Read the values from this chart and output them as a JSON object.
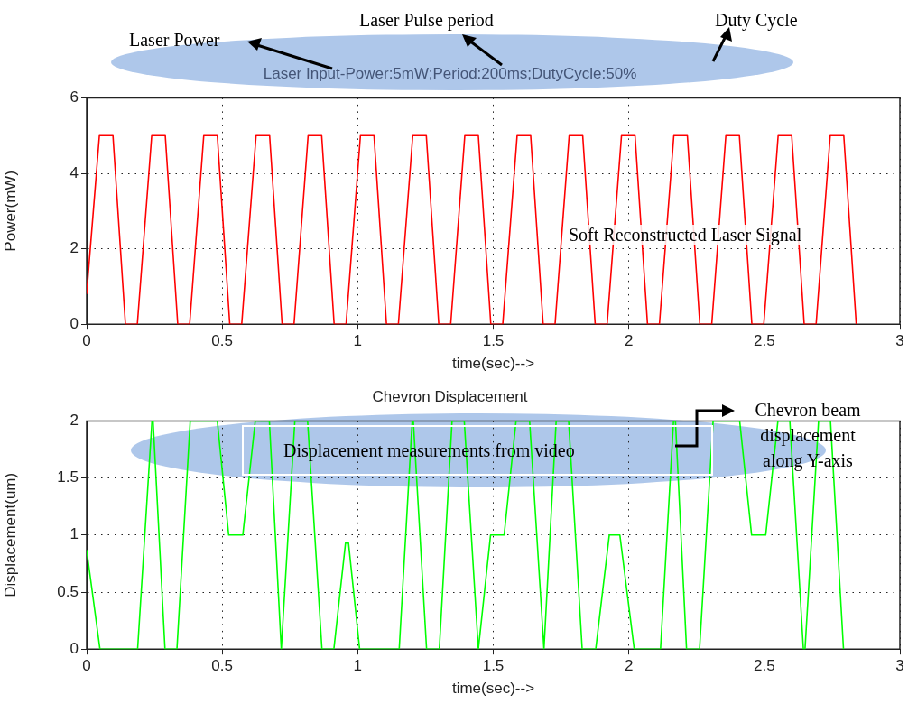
{
  "chart_data": [
    {
      "type": "line",
      "title": "Laser Input-Power:5mW;Period:200ms;DutyCycle:50%",
      "xlabel": "time(sec)-->",
      "ylabel": "Power(mW)",
      "xlim": [
        0,
        3
      ],
      "xticks": [
        0,
        0.5,
        1,
        1.5,
        2,
        2.5,
        3
      ],
      "ylim": [
        0,
        6
      ],
      "yticks": [
        0,
        2,
        4,
        6
      ],
      "grid": true,
      "marker": "none",
      "annotations": [
        "Laser Power",
        "Laser Pulse period",
        "Duty Cycle",
        "Soft Reconstructed Laser Signal"
      ],
      "series": [
        {
          "color": "#ff0000",
          "x": [
            0,
            0.047,
            0.097,
            0.143,
            0.187,
            0.24,
            0.29,
            0.336,
            0.38,
            0.432,
            0.482,
            0.528,
            0.572,
            0.625,
            0.675,
            0.721,
            0.765,
            0.817,
            0.867,
            0.913,
            0.957,
            1.01,
            1.06,
            1.106,
            1.15,
            1.203,
            1.253,
            1.299,
            1.343,
            1.395,
            1.445,
            1.491,
            1.535,
            1.588,
            1.638,
            1.684,
            1.728,
            1.78,
            1.83,
            1.876,
            1.92,
            1.973,
            2.023,
            2.069,
            2.113,
            2.166,
            2.216,
            2.262,
            2.306,
            2.358,
            2.408,
            2.454,
            2.498,
            2.551,
            2.601,
            2.647,
            2.691,
            2.743,
            2.793,
            2.839
          ],
          "values": [
            0.8,
            5,
            5,
            0,
            0,
            5,
            5,
            0,
            0,
            5,
            5,
            0,
            0,
            5,
            5,
            0,
            0,
            5,
            5,
            0,
            0,
            5,
            5,
            0,
            0,
            5,
            5,
            0,
            0,
            5,
            5,
            0,
            0,
            5,
            5,
            0,
            0,
            5,
            5,
            0,
            0,
            5,
            5,
            0,
            0,
            5,
            5,
            0,
            0,
            5,
            5,
            0,
            0,
            5,
            5,
            0,
            0,
            5,
            5,
            0
          ]
        }
      ]
    },
    {
      "type": "line",
      "title": "Chevron Displacement",
      "xlabel": "time(sec)-->",
      "ylabel": "Displacement(um)",
      "xlim": [
        0,
        3
      ],
      "xticks": [
        0,
        0.5,
        1,
        1.5,
        2,
        2.5,
        3
      ],
      "ylim": [
        0,
        2
      ],
      "yticks": [
        0,
        0.5,
        1,
        1.5,
        2
      ],
      "grid": true,
      "marker": "none",
      "annotations": [
        "Displacement measurements from video",
        "Chevron beam displacement along Y-axis"
      ],
      "series": [
        {
          "color": "#00ff00",
          "x": [
            0,
            0.049,
            0.188,
            0.241,
            0.245,
            0.289,
            0.333,
            0.382,
            0.482,
            0.524,
            0.576,
            0.622,
            0.674,
            0.718,
            0.768,
            0.815,
            0.868,
            0.912,
            0.955,
            0.966,
            1.007,
            1.153,
            1.201,
            1.205,
            1.254,
            1.301,
            1.348,
            1.393,
            1.445,
            1.49,
            1.54,
            1.584,
            1.634,
            1.687,
            1.732,
            1.778,
            1.828,
            1.878,
            1.928,
            1.967,
            2.02,
            2.117,
            2.165,
            2.172,
            2.213,
            2.261,
            2.311,
            2.409,
            2.453,
            2.505,
            2.55,
            2.594,
            2.644,
            2.65,
            2.7,
            2.744,
            2.792
          ],
          "values": [
            0.87,
            0,
            0,
            2,
            2,
            0,
            0,
            2,
            2,
            1,
            1,
            2,
            2,
            0,
            2,
            2,
            0,
            0,
            0.93,
            0.93,
            0,
            0,
            2,
            2,
            0,
            0,
            2,
            2,
            0,
            1,
            1,
            2,
            2,
            0,
            2,
            2,
            0,
            0,
            1,
            1,
            0,
            0,
            2,
            2,
            0,
            0,
            2,
            2,
            1,
            1,
            2,
            2,
            0,
            0,
            2,
            2,
            0
          ]
        }
      ]
    }
  ]
}
